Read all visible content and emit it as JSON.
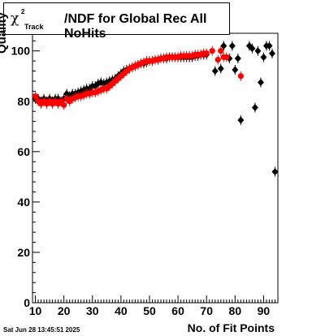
{
  "title": {
    "symbol": "χ",
    "superscript": "2",
    "subscript": "Track",
    "text": "/NDF for Global Rec All NoHits"
  },
  "timestamp": "Sat Jun 28 13:45:51 2025",
  "chart_data": {
    "type": "scatter",
    "title": "χ2 Track /NDF for Global Rec All NoHits",
    "xlabel": "No. of Fit Points",
    "ylabel": "Quality",
    "xlim": [
      9,
      95
    ],
    "ylim": [
      0,
      107
    ],
    "xticks": [
      10,
      20,
      30,
      40,
      50,
      60,
      70,
      80,
      90
    ],
    "yticks": [
      0,
      20,
      40,
      60,
      80,
      100
    ],
    "grid": false,
    "legend": "none",
    "series": [
      {
        "color": "#000000",
        "points": [
          [
            10,
            81
          ],
          [
            11,
            81
          ],
          [
            12,
            80
          ],
          [
            13,
            81
          ],
          [
            14,
            80
          ],
          [
            15,
            81
          ],
          [
            16,
            80
          ],
          [
            17,
            81
          ],
          [
            18,
            81
          ],
          [
            19,
            80
          ],
          [
            20,
            81
          ],
          [
            21,
            83
          ],
          [
            22,
            82
          ],
          [
            23,
            83
          ],
          [
            24,
            83
          ],
          [
            25,
            83.5
          ],
          [
            26,
            84
          ],
          [
            27,
            84.5
          ],
          [
            28,
            85
          ],
          [
            29,
            85
          ],
          [
            30,
            86
          ],
          [
            31,
            86
          ],
          [
            32,
            87
          ],
          [
            33,
            87.5
          ],
          [
            34,
            87
          ],
          [
            35,
            87.5
          ],
          [
            36,
            88
          ],
          [
            37,
            88.5
          ],
          [
            38,
            89
          ],
          [
            39,
            90
          ],
          [
            40,
            91
          ],
          [
            41,
            92
          ],
          [
            42,
            92.5
          ],
          [
            43,
            93
          ],
          [
            44,
            93.5
          ],
          [
            45,
            94
          ],
          [
            46,
            94.5
          ],
          [
            47,
            95
          ],
          [
            48,
            95
          ],
          [
            49,
            95.5
          ],
          [
            50,
            96
          ],
          [
            51,
            96
          ],
          [
            52,
            96.5
          ],
          [
            53,
            96.5
          ],
          [
            54,
            97
          ],
          [
            55,
            97
          ],
          [
            56,
            97
          ],
          [
            57,
            97.5
          ],
          [
            58,
            97.5
          ],
          [
            59,
            97.5
          ],
          [
            60,
            97.5
          ],
          [
            61,
            97.5
          ],
          [
            62,
            97.5
          ],
          [
            63,
            97.5
          ],
          [
            64,
            97.5
          ],
          [
            65,
            97.5
          ],
          [
            66,
            98
          ],
          [
            67,
            98
          ],
          [
            68,
            98.5
          ],
          [
            69,
            98.5
          ],
          [
            70,
            98.5
          ],
          [
            73,
            92
          ],
          [
            75,
            93
          ],
          [
            76,
            102
          ],
          [
            78,
            97
          ],
          [
            79,
            102
          ],
          [
            80,
            92.5
          ],
          [
            81,
            97
          ],
          [
            82,
            72.5
          ],
          [
            85,
            102
          ],
          [
            86,
            101
          ],
          [
            87,
            77.5
          ],
          [
            88,
            100
          ],
          [
            89,
            87.5
          ],
          [
            90,
            97.5
          ],
          [
            91,
            102
          ],
          [
            92,
            102
          ],
          [
            93,
            99
          ],
          [
            94,
            52
          ]
        ]
      },
      {
        "color": "#ff0000",
        "points": [
          [
            10,
            82
          ],
          [
            11,
            80
          ],
          [
            12,
            79
          ],
          [
            13,
            80
          ],
          [
            14,
            79
          ],
          [
            15,
            80
          ],
          [
            16,
            79
          ],
          [
            17,
            80
          ],
          [
            18,
            79
          ],
          [
            19,
            80
          ],
          [
            20,
            78.5
          ],
          [
            21,
            81
          ],
          [
            22,
            80
          ],
          [
            23,
            81
          ],
          [
            24,
            81.5
          ],
          [
            25,
            82
          ],
          [
            26,
            82
          ],
          [
            27,
            82.5
          ],
          [
            28,
            83
          ],
          [
            29,
            83
          ],
          [
            30,
            83.5
          ],
          [
            31,
            83.5
          ],
          [
            32,
            84
          ],
          [
            33,
            84.5
          ],
          [
            34,
            85
          ],
          [
            35,
            85
          ],
          [
            36,
            86
          ],
          [
            37,
            87
          ],
          [
            38,
            88
          ],
          [
            39,
            89
          ],
          [
            40,
            90
          ],
          [
            41,
            91
          ],
          [
            42,
            92
          ],
          [
            43,
            93
          ],
          [
            44,
            93.5
          ],
          [
            45,
            94
          ],
          [
            46,
            94.5
          ],
          [
            47,
            95
          ],
          [
            48,
            95.5
          ],
          [
            49,
            96
          ],
          [
            50,
            96
          ],
          [
            51,
            96
          ],
          [
            52,
            96.5
          ],
          [
            53,
            96.5
          ],
          [
            54,
            97
          ],
          [
            55,
            97
          ],
          [
            56,
            97.5
          ],
          [
            57,
            97.5
          ],
          [
            58,
            97.5
          ],
          [
            59,
            97.5
          ],
          [
            60,
            97.5
          ],
          [
            61,
            98
          ],
          [
            62,
            98
          ],
          [
            63,
            98
          ],
          [
            64,
            98
          ],
          [
            65,
            98
          ],
          [
            66,
            98.5
          ],
          [
            67,
            98.5
          ],
          [
            68,
            98.5
          ],
          [
            69,
            99
          ],
          [
            70,
            99
          ],
          [
            72,
            100
          ],
          [
            74,
            96.5
          ],
          [
            75,
            100
          ],
          [
            76,
            97.5
          ],
          [
            77,
            97.5
          ],
          [
            82,
            90
          ]
        ]
      }
    ]
  }
}
